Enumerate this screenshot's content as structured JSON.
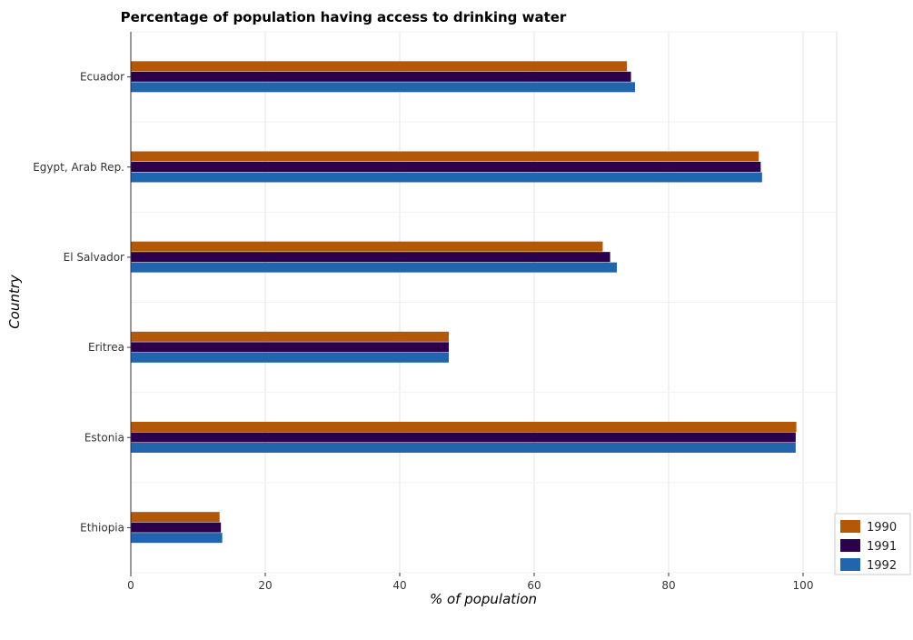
{
  "chart_data": {
    "type": "bar",
    "orientation": "horizontal",
    "title": "Percentage of population having access to drinking water",
    "xlabel": "% of population",
    "ylabel": "Country",
    "xlim": [
      0,
      105
    ],
    "xticks": [
      0,
      20,
      40,
      60,
      80,
      100
    ],
    "categories": [
      "Ecuador",
      "Egypt, Arab Rep.",
      "El Salvador",
      "Eritrea",
      "Estonia",
      "Ethiopia"
    ],
    "series": [
      {
        "name": "1990",
        "color": "#b35806",
        "values": [
          73.8,
          93.4,
          70.2,
          47.3,
          99.0,
          13.2
        ]
      },
      {
        "name": "1991",
        "color": "#2d004b",
        "values": [
          74.4,
          93.7,
          71.3,
          47.3,
          98.9,
          13.4
        ]
      },
      {
        "name": "1992",
        "color": "#2166ac",
        "values": [
          75.0,
          93.9,
          72.3,
          47.3,
          98.9,
          13.6
        ]
      }
    ],
    "legend_position": "bottom-right",
    "grid": true
  }
}
